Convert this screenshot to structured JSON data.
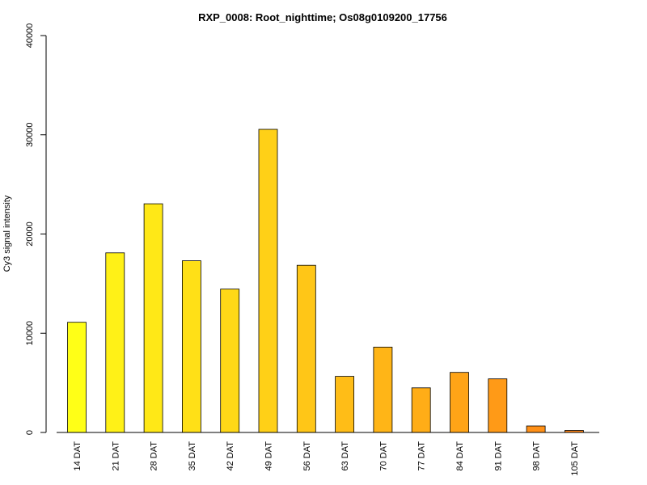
{
  "chart_data": {
    "type": "bar",
    "title": "RXP_0008: Root_nighttime; Os08g0109200_17756",
    "xlabel": "",
    "ylabel": "Cy3 signal intensity",
    "ylim": [
      0,
      40000
    ],
    "yticks": [
      0,
      10000,
      20000,
      30000,
      40000
    ],
    "categories": [
      "14 DAT",
      "21 DAT",
      "28 DAT",
      "35 DAT",
      "42 DAT",
      "49 DAT",
      "56 DAT",
      "63 DAT",
      "70 DAT",
      "77 DAT",
      "84 DAT",
      "91 DAT",
      "98 DAT",
      "105 DAT"
    ],
    "values": [
      11100,
      18100,
      23050,
      17300,
      14450,
      30550,
      16850,
      5650,
      8600,
      4500,
      6050,
      5400,
      650,
      200
    ],
    "colors": [
      "#FFFF17",
      "#FFF117",
      "#FFE817",
      "#FFE017",
      "#FFD817",
      "#FFD017",
      "#FFC617",
      "#FFBD17",
      "#FFB517",
      "#FFAD17",
      "#FFA417",
      "#FF9A17",
      "#FF9017",
      "#FF8617"
    ],
    "grid": false,
    "legend": "none"
  }
}
